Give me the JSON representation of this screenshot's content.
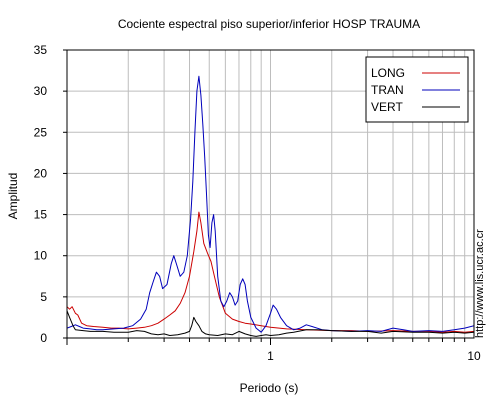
{
  "chart_data": {
    "type": "line",
    "title": "Cociente espectral piso superior/inferior  HOSP TRAUMA",
    "xlabel": "Periodo (s)",
    "ylabel": "Amplitud",
    "xscale": "log",
    "xlim": [
      0.1,
      10
    ],
    "ylim": [
      0,
      35
    ],
    "yticks": [
      0,
      5,
      10,
      15,
      20,
      25,
      30,
      35
    ],
    "xticks": [
      {
        "value": 1,
        "label": "1"
      },
      {
        "value": 10,
        "label": "10"
      }
    ],
    "grid": true,
    "legend": {
      "position": "top-right"
    },
    "series": [
      {
        "name": "LONG",
        "color": "#cc0000",
        "points": [
          [
            0.1,
            3.8
          ],
          [
            0.103,
            3.5
          ],
          [
            0.106,
            3.8
          ],
          [
            0.11,
            3.0
          ],
          [
            0.113,
            2.8
          ],
          [
            0.118,
            1.8
          ],
          [
            0.125,
            1.5
          ],
          [
            0.135,
            1.4
          ],
          [
            0.15,
            1.3
          ],
          [
            0.165,
            1.2
          ],
          [
            0.18,
            1.2
          ],
          [
            0.2,
            1.1
          ],
          [
            0.22,
            1.2
          ],
          [
            0.24,
            1.3
          ],
          [
            0.26,
            1.5
          ],
          [
            0.28,
            1.8
          ],
          [
            0.3,
            2.3
          ],
          [
            0.32,
            2.8
          ],
          [
            0.34,
            3.3
          ],
          [
            0.36,
            4.2
          ],
          [
            0.38,
            5.5
          ],
          [
            0.4,
            7.5
          ],
          [
            0.42,
            10.5
          ],
          [
            0.435,
            13.0
          ],
          [
            0.445,
            15.3
          ],
          [
            0.455,
            14.0
          ],
          [
            0.47,
            11.5
          ],
          [
            0.49,
            10.3
          ],
          [
            0.51,
            9.3
          ],
          [
            0.53,
            7.5
          ],
          [
            0.56,
            5.0
          ],
          [
            0.6,
            3.0
          ],
          [
            0.65,
            2.3
          ],
          [
            0.7,
            2.0
          ],
          [
            0.75,
            1.8
          ],
          [
            0.8,
            1.7
          ],
          [
            0.9,
            1.5
          ],
          [
            1.0,
            1.3
          ],
          [
            1.2,
            1.1
          ],
          [
            1.5,
            1.0
          ],
          [
            2.0,
            0.9
          ],
          [
            2.5,
            0.9
          ],
          [
            3.0,
            0.8
          ],
          [
            4.0,
            0.9
          ],
          [
            5.0,
            0.8
          ],
          [
            6.0,
            0.8
          ],
          [
            7.0,
            0.7
          ],
          [
            8.0,
            0.8
          ],
          [
            9.0,
            0.7
          ],
          [
            10.0,
            0.8
          ]
        ]
      },
      {
        "name": "TRAN",
        "color": "#0000bb",
        "points": [
          [
            0.1,
            1.2
          ],
          [
            0.105,
            1.4
          ],
          [
            0.11,
            1.6
          ],
          [
            0.115,
            1.4
          ],
          [
            0.12,
            1.2
          ],
          [
            0.13,
            1.1
          ],
          [
            0.14,
            1.0
          ],
          [
            0.15,
            1.0
          ],
          [
            0.17,
            1.1
          ],
          [
            0.19,
            1.2
          ],
          [
            0.21,
            1.5
          ],
          [
            0.23,
            2.3
          ],
          [
            0.245,
            3.5
          ],
          [
            0.255,
            5.5
          ],
          [
            0.265,
            6.8
          ],
          [
            0.275,
            8.0
          ],
          [
            0.285,
            7.5
          ],
          [
            0.295,
            6.0
          ],
          [
            0.31,
            6.5
          ],
          [
            0.325,
            9.0
          ],
          [
            0.335,
            10.0
          ],
          [
            0.345,
            9.0
          ],
          [
            0.36,
            7.5
          ],
          [
            0.375,
            8.0
          ],
          [
            0.39,
            10.0
          ],
          [
            0.405,
            14.5
          ],
          [
            0.415,
            19.0
          ],
          [
            0.425,
            25.0
          ],
          [
            0.435,
            30.0
          ],
          [
            0.445,
            31.8
          ],
          [
            0.455,
            29.5
          ],
          [
            0.465,
            26.0
          ],
          [
            0.475,
            22.0
          ],
          [
            0.485,
            17.5
          ],
          [
            0.495,
            12.5
          ],
          [
            0.505,
            11.0
          ],
          [
            0.515,
            14.0
          ],
          [
            0.525,
            15.0
          ],
          [
            0.535,
            13.0
          ],
          [
            0.55,
            7.5
          ],
          [
            0.57,
            4.5
          ],
          [
            0.59,
            3.8
          ],
          [
            0.61,
            4.5
          ],
          [
            0.63,
            5.5
          ],
          [
            0.65,
            5.0
          ],
          [
            0.67,
            4.0
          ],
          [
            0.69,
            4.5
          ],
          [
            0.71,
            6.5
          ],
          [
            0.73,
            7.2
          ],
          [
            0.75,
            6.5
          ],
          [
            0.77,
            4.5
          ],
          [
            0.8,
            2.5
          ],
          [
            0.85,
            1.2
          ],
          [
            0.9,
            0.7
          ],
          [
            0.95,
            1.5
          ],
          [
            1.0,
            3.0
          ],
          [
            1.03,
            4.0
          ],
          [
            1.07,
            3.5
          ],
          [
            1.12,
            2.5
          ],
          [
            1.2,
            1.5
          ],
          [
            1.3,
            1.0
          ],
          [
            1.4,
            1.2
          ],
          [
            1.5,
            1.6
          ],
          [
            1.6,
            1.4
          ],
          [
            1.8,
            1.0
          ],
          [
            2.0,
            0.9
          ],
          [
            2.5,
            0.8
          ],
          [
            3.0,
            0.9
          ],
          [
            3.5,
            0.8
          ],
          [
            4.0,
            1.2
          ],
          [
            4.5,
            1.0
          ],
          [
            5.0,
            0.8
          ],
          [
            6.0,
            0.9
          ],
          [
            7.0,
            0.8
          ],
          [
            8.0,
            1.0
          ],
          [
            9.0,
            1.2
          ],
          [
            10.0,
            1.5
          ]
        ]
      },
      {
        "name": "VERT",
        "color": "#000000",
        "points": [
          [
            0.1,
            3.3
          ],
          [
            0.103,
            2.5
          ],
          [
            0.107,
            1.5
          ],
          [
            0.11,
            1.0
          ],
          [
            0.12,
            0.9
          ],
          [
            0.13,
            0.8
          ],
          [
            0.15,
            0.8
          ],
          [
            0.17,
            0.7
          ],
          [
            0.2,
            0.7
          ],
          [
            0.22,
            0.9
          ],
          [
            0.24,
            0.8
          ],
          [
            0.26,
            0.5
          ],
          [
            0.28,
            0.4
          ],
          [
            0.3,
            0.5
          ],
          [
            0.32,
            0.3
          ],
          [
            0.35,
            0.4
          ],
          [
            0.38,
            0.6
          ],
          [
            0.4,
            0.8
          ],
          [
            0.41,
            1.5
          ],
          [
            0.42,
            2.5
          ],
          [
            0.43,
            2.0
          ],
          [
            0.445,
            1.5
          ],
          [
            0.46,
            0.8
          ],
          [
            0.48,
            0.5
          ],
          [
            0.5,
            0.4
          ],
          [
            0.55,
            0.3
          ],
          [
            0.6,
            0.5
          ],
          [
            0.65,
            0.4
          ],
          [
            0.7,
            0.8
          ],
          [
            0.75,
            0.5
          ],
          [
            0.8,
            0.3
          ],
          [
            0.85,
            0.2
          ],
          [
            0.9,
            0.3
          ],
          [
            0.95,
            0.4
          ],
          [
            1.0,
            0.3
          ],
          [
            1.1,
            0.4
          ],
          [
            1.2,
            0.6
          ],
          [
            1.3,
            0.7
          ],
          [
            1.5,
            1.0
          ],
          [
            1.7,
            1.0
          ],
          [
            2.0,
            0.9
          ],
          [
            2.5,
            0.8
          ],
          [
            3.0,
            0.8
          ],
          [
            3.5,
            0.6
          ],
          [
            4.0,
            0.8
          ],
          [
            5.0,
            0.7
          ],
          [
            6.0,
            0.7
          ],
          [
            7.0,
            0.6
          ],
          [
            8.0,
            0.7
          ],
          [
            9.0,
            0.6
          ],
          [
            10.0,
            0.7
          ]
        ]
      }
    ],
    "side_note": "http://www.lis.ucr.ac.cr"
  }
}
